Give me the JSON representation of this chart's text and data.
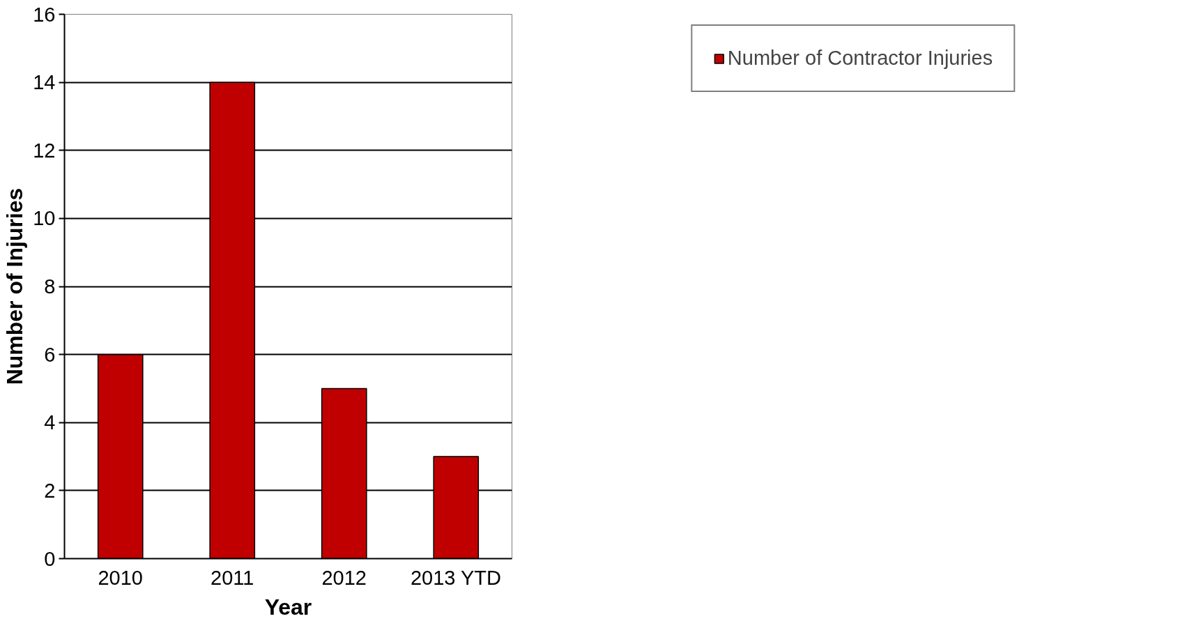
{
  "chart_data": {
    "type": "bar",
    "xlabel": "Year",
    "ylabel": "Number of Injuries",
    "categories": [
      "2010",
      "2011",
      "2012",
      "2013 YTD"
    ],
    "series": [
      {
        "name": "Number of Contractor Injuries",
        "color": "#c00000",
        "values": [
          6,
          14,
          5,
          3
        ]
      }
    ],
    "ylim": [
      0,
      16
    ],
    "yticks": [
      0,
      2,
      4,
      6,
      8,
      10,
      12,
      14,
      16
    ],
    "grid": "y",
    "legend": "top right"
  }
}
